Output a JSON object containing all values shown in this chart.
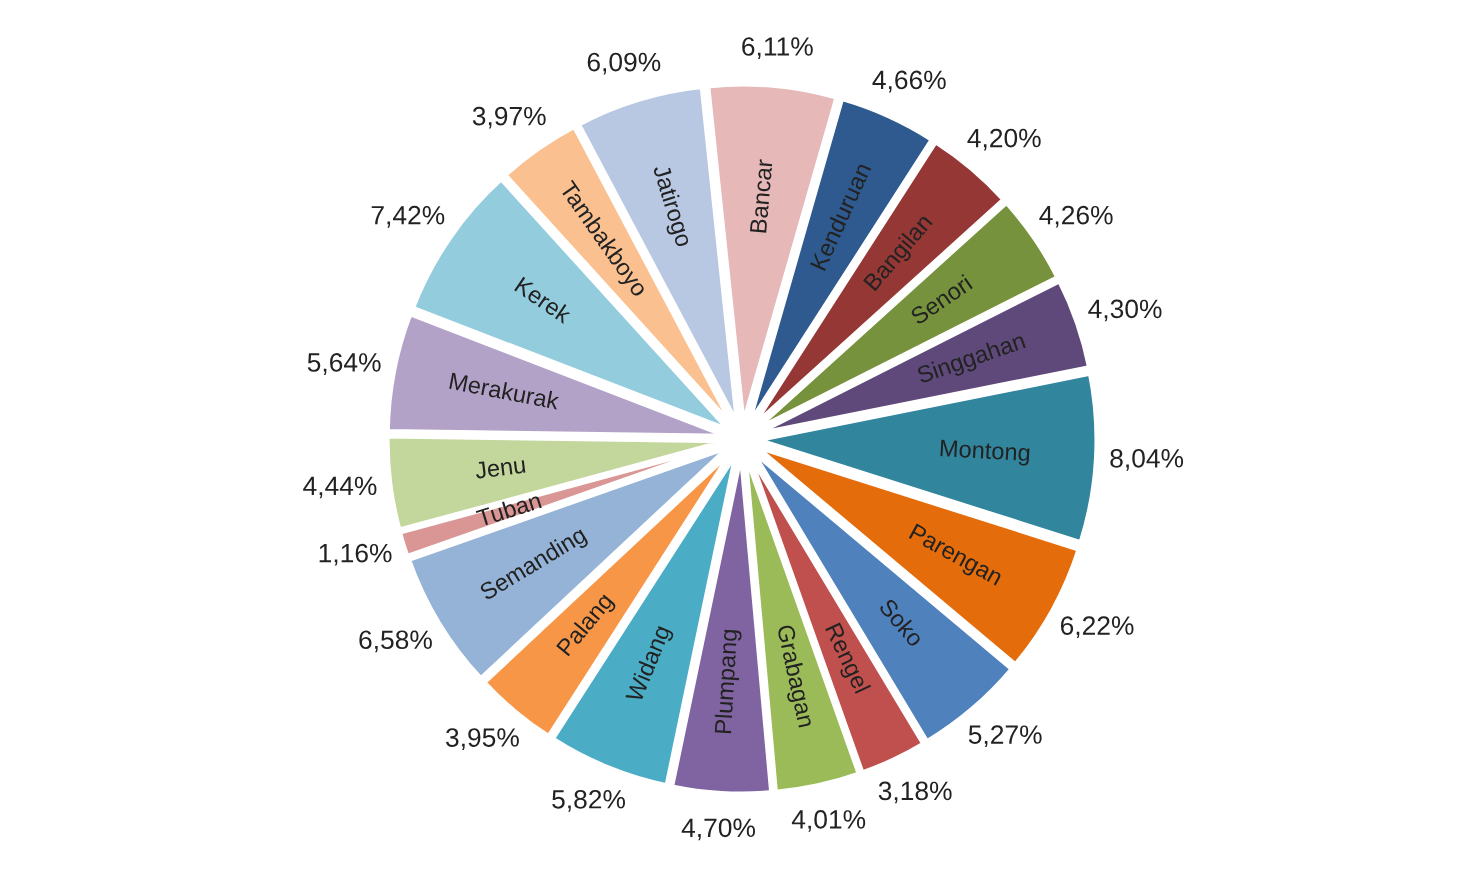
{
  "chart_data": {
    "type": "pie",
    "categories": [
      "Bancar",
      "Kenduruan",
      "Bangilan",
      "Senori",
      "Singgahan",
      "Montong",
      "Parengan",
      "Soko",
      "Rengel",
      "Grabagan",
      "Plumpang",
      "Widang",
      "Palang",
      "Semanding",
      "Tuban",
      "Jenu",
      "Merakurak",
      "Kerek",
      "Tambakboyo",
      "Jatirogo"
    ],
    "values": [
      6.11,
      4.66,
      4.2,
      4.26,
      4.3,
      8.04,
      6.22,
      5.27,
      3.18,
      4.01,
      4.7,
      5.82,
      3.95,
      6.58,
      1.16,
      4.44,
      5.64,
      7.42,
      3.97,
      6.09
    ],
    "value_labels": [
      "6,11%",
      "4,66%",
      "4,20%",
      "4,26%",
      "4,30%",
      "8,04%",
      "6,22%",
      "5,27%",
      "3,18%",
      "4,01%",
      "4,70%",
      "5,82%",
      "3,95%",
      "6,58%",
      "1,16%",
      "4,44%",
      "5,64%",
      "7,42%",
      "3,97%",
      "6,09%"
    ],
    "colors": [
      "#e6b9b8",
      "#2e5a8f",
      "#953735",
      "#76923c",
      "#5f497a",
      "#31859c",
      "#e46c0a",
      "#4f81bd",
      "#c0504d",
      "#9bbb59",
      "#8064a2",
      "#4bacc6",
      "#f79646",
      "#95b3d7",
      "#d99694",
      "#c3d69b",
      "#b3a2c7",
      "#93cddd",
      "#fac090",
      "#b9c8e2"
    ],
    "legend": false
  }
}
